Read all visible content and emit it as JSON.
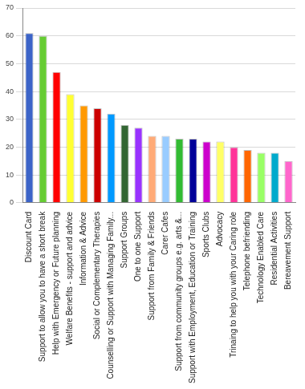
{
  "chart_data": {
    "type": "bar",
    "categories": [
      "Discount Card",
      "Support to allow you to have a short break",
      "Help with Emergency or Future planning",
      "Welfare Benefits - support and advice",
      "Information & Advice",
      "Social or Complementary Therapies",
      "Counselling or Support with Managing Family...",
      "Support Groups",
      "One to one Support",
      "Support from Family & Friends",
      "Carer Cafes",
      "Support from community groups e.g. arts &...",
      "Support with Employment, Education or Training",
      "Sports Clubs",
      "Advocacy",
      "Trinaing to help you with your Caring role",
      "Telephone befriending",
      "Technology Enabled Care",
      "Residential Activities",
      "Bereavement Support"
    ],
    "values": [
      61,
      60,
      47,
      39,
      35,
      34,
      32,
      28,
      27,
      24,
      24,
      23,
      23,
      22,
      22,
      20,
      19,
      18,
      18,
      15
    ],
    "colors": [
      "#3c64c8",
      "#66cc33",
      "#ff0000",
      "#ffff33",
      "#ff9900",
      "#cc0000",
      "#0099ff",
      "#336633",
      "#9933ff",
      "#ffaa77",
      "#99ccff",
      "#33bb33",
      "#000099",
      "#cc00cc",
      "#ffff66",
      "#ff3399",
      "#ff6600",
      "#99ff66",
      "#00aacc",
      "#ff66cc"
    ],
    "ylim": [
      0,
      70
    ],
    "yticks": [
      0,
      10,
      20,
      30,
      40,
      50,
      60,
      70
    ],
    "grid": true
  }
}
